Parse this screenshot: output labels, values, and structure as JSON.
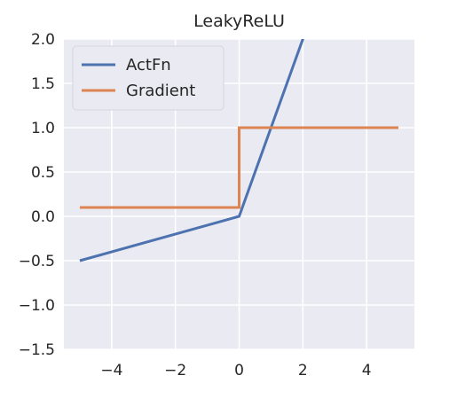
{
  "chart_data": {
    "type": "line",
    "title": "LeakyReLU",
    "xlabel": "",
    "ylabel": "",
    "xlim": [
      -5.5,
      5.5
    ],
    "ylim": [
      -1.5,
      2.0
    ],
    "xticks": [
      -4,
      -2,
      0,
      2,
      4
    ],
    "xtick_labels": [
      "−4",
      "−2",
      "0",
      "2",
      "4"
    ],
    "yticks": [
      -1.5,
      -1.0,
      -0.5,
      0.0,
      0.5,
      1.0,
      1.5,
      2.0
    ],
    "ytick_labels": [
      "−1.5",
      "−1.0",
      "−0.5",
      "0.0",
      "0.5",
      "1.0",
      "1.5",
      "2.0"
    ],
    "grid": true,
    "legend_position": "top-left",
    "series": [
      {
        "name": "ActFn",
        "color": "#4c72b0",
        "x": [
          -5,
          0,
          5
        ],
        "y": [
          -0.5,
          0,
          5
        ]
      },
      {
        "name": "Gradient",
        "color": "#dd8452",
        "x": [
          -5,
          0,
          0,
          5
        ],
        "y": [
          0.1,
          0.1,
          1,
          1
        ]
      }
    ]
  }
}
